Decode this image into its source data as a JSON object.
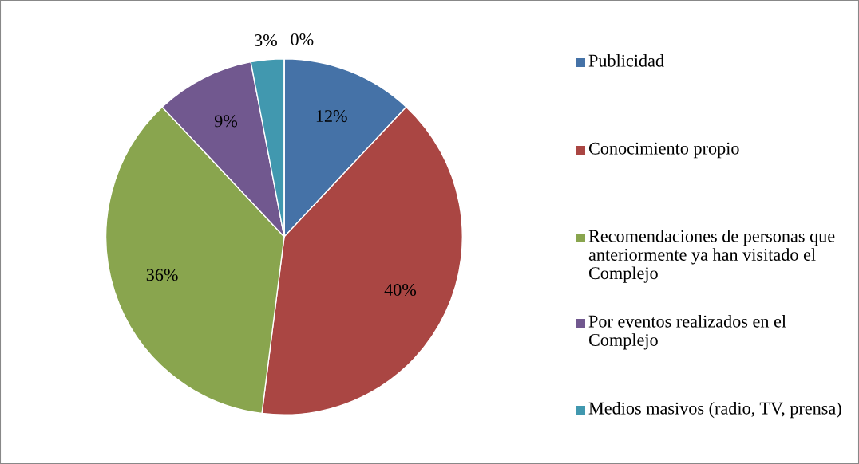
{
  "chart_data": {
    "type": "pie",
    "categories": [
      "Publicidad",
      "Conocimiento propio",
      "Recomendaciones de personas que anteriormente ya han visitado el Complejo",
      "Por eventos realizados en el Complejo",
      "Medios masivos (radio, TV, prensa)",
      null
    ],
    "values": [
      12,
      40,
      36,
      9,
      3,
      0
    ],
    "value_labels": [
      "12%",
      "40%",
      "36%",
      "9%",
      "3%",
      "0%"
    ],
    "colors": [
      "#4572a7",
      "#aa4643",
      "#89a54e",
      "#71588f",
      "#4198af",
      "#db843d"
    ],
    "legend": "right"
  }
}
